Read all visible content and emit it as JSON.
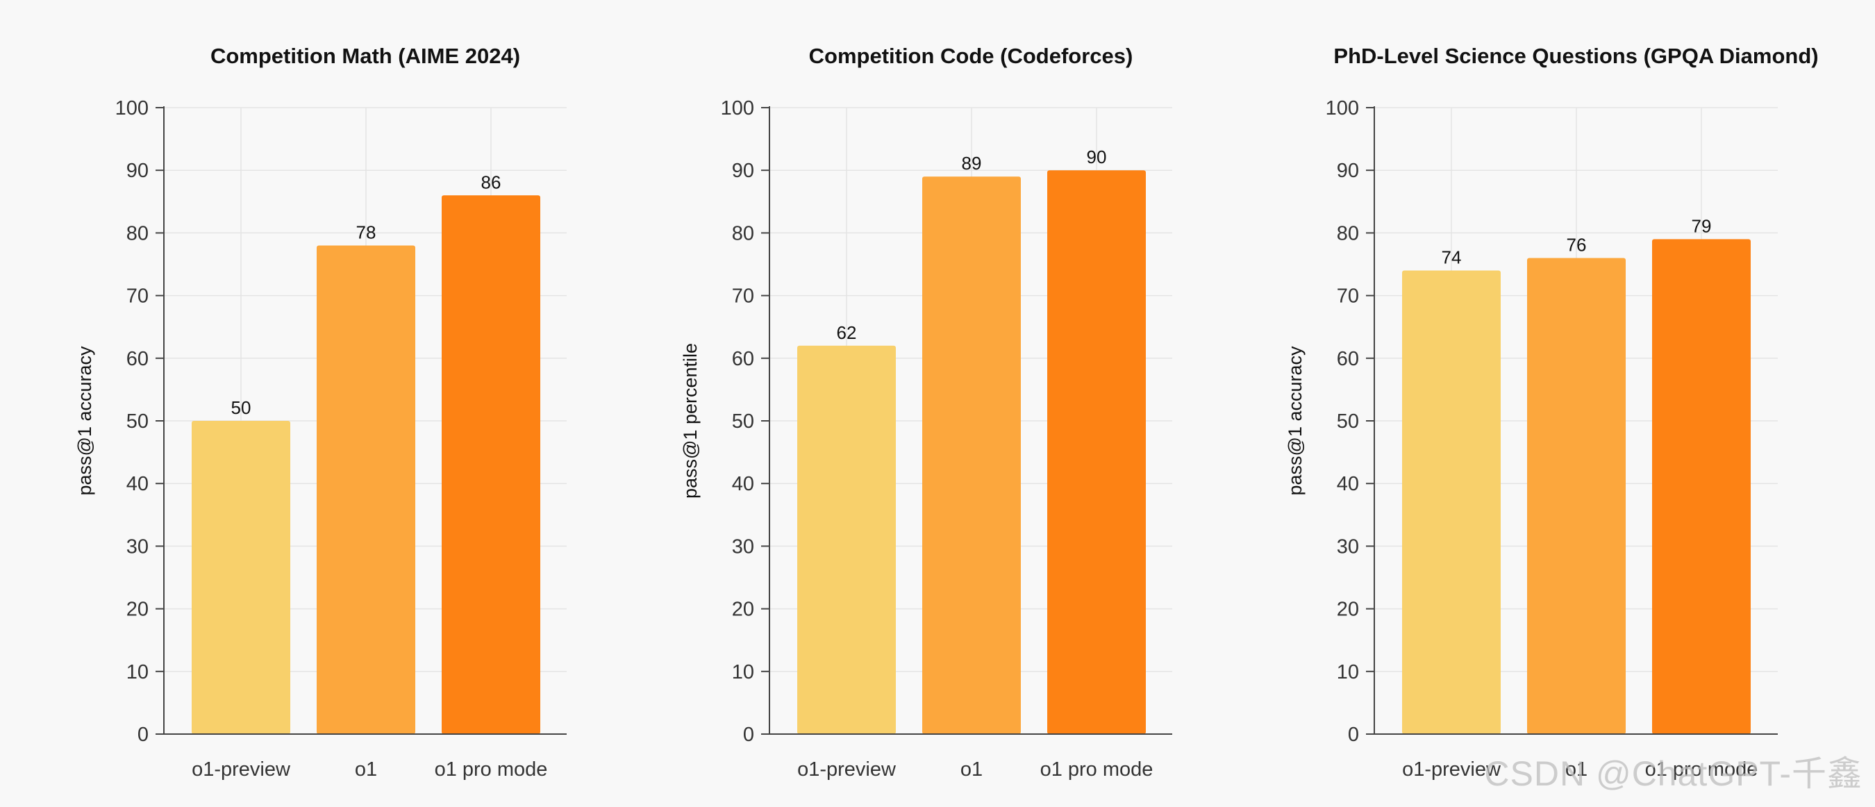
{
  "colors": {
    "background": "#f8f8f8",
    "bar_o1_preview": "#f8d06b",
    "bar_o1": "#fca73d",
    "bar_o1_pro": "#fd8214",
    "grid": "#e4e4e4",
    "axis": "#444444"
  },
  "chart_data": [
    {
      "type": "bar",
      "title": "Competition Math (AIME 2024)",
      "ylabel": "pass@1 accuracy",
      "xlabel": "",
      "categories": [
        "o1-preview",
        "o1",
        "o1 pro mode"
      ],
      "values": [
        50,
        78,
        86
      ],
      "data_labels": [
        "50",
        "78",
        "86"
      ],
      "ylim": [
        0,
        100
      ],
      "yticks": [
        0,
        10,
        20,
        30,
        40,
        50,
        60,
        70,
        80,
        90,
        100
      ],
      "grid": true
    },
    {
      "type": "bar",
      "title": "Competition Code (Codeforces)",
      "ylabel": "pass@1 percentile",
      "xlabel": "",
      "categories": [
        "o1-preview",
        "o1",
        "o1 pro mode"
      ],
      "values": [
        62,
        89,
        90
      ],
      "data_labels": [
        "62",
        "89",
        "90"
      ],
      "ylim": [
        0,
        100
      ],
      "yticks": [
        0,
        10,
        20,
        30,
        40,
        50,
        60,
        70,
        80,
        90,
        100
      ],
      "grid": true
    },
    {
      "type": "bar",
      "title": "PhD-Level Science Questions (GPQA Diamond)",
      "ylabel": "pass@1 accuracy",
      "xlabel": "",
      "categories": [
        "o1-preview",
        "o1",
        "o1 pro mode"
      ],
      "values": [
        74,
        76,
        79
      ],
      "data_labels": [
        "74",
        "76",
        "79"
      ],
      "ylim": [
        0,
        100
      ],
      "yticks": [
        0,
        10,
        20,
        30,
        40,
        50,
        60,
        70,
        80,
        90,
        100
      ],
      "grid": true
    }
  ],
  "watermark": "CSDN @ChatGPT-千鑫"
}
